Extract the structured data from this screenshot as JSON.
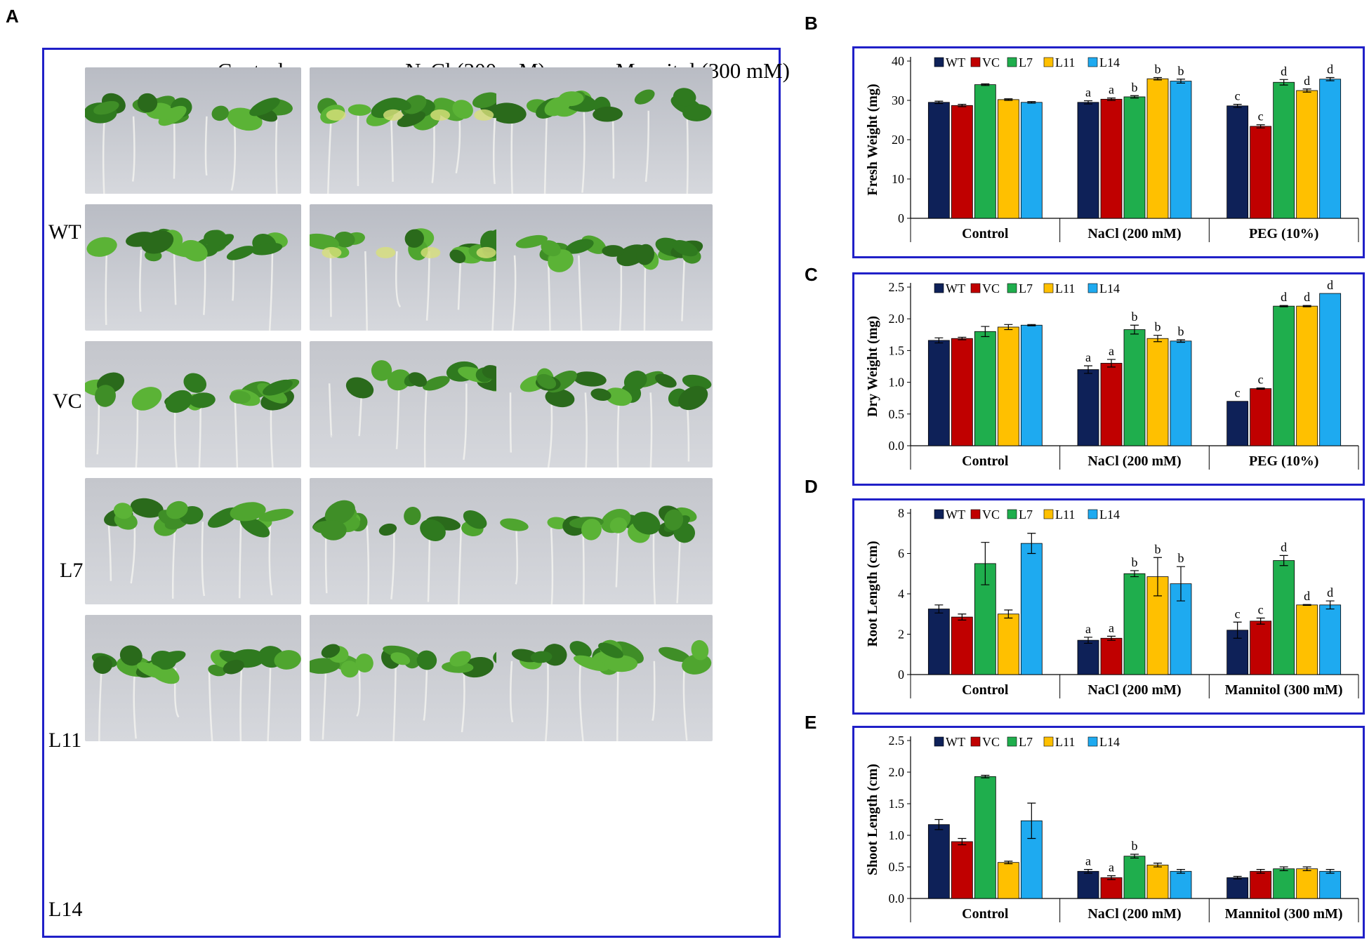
{
  "panels": {
    "A": "A",
    "B": "B",
    "C": "C",
    "D": "D",
    "E": "E"
  },
  "photo_panel": {
    "columns": [
      "Control",
      "NaCl (200 mM)",
      "Mannitol (300 mM)"
    ],
    "rows": [
      "WT",
      "VC",
      "L7",
      "L11",
      "L14"
    ]
  },
  "colors": {
    "WT": "#0e2158",
    "VC": "#c00000",
    "L7": "#1fae4d",
    "L11": "#ffc000",
    "L14": "#1eaaf0",
    "frame": "#2020c8"
  },
  "chart_data": [
    {
      "type": "bar",
      "panel": "B",
      "ylabel": "Fresh Weight (mg)",
      "ylim": [
        0,
        40
      ],
      "yticks": [
        0,
        10,
        20,
        30,
        40
      ],
      "ytick_labels": [
        "0",
        "10",
        "20",
        "30",
        "40"
      ],
      "categories": [
        "Control",
        "NaCl (200 mM)",
        "PEG (10%)"
      ],
      "legend": "top-left",
      "series": [
        {
          "name": "WT",
          "values": [
            29.5,
            29.5,
            28.6
          ],
          "errors": [
            0.3,
            0.4,
            0.4
          ],
          "labels": [
            "",
            "a",
            "c"
          ]
        },
        {
          "name": "VC",
          "values": [
            28.7,
            30.3,
            23.4
          ],
          "errors": [
            0.3,
            0.3,
            0.4
          ],
          "labels": [
            "",
            "a",
            "c"
          ]
        },
        {
          "name": "L7",
          "values": [
            34.0,
            30.9,
            34.6
          ],
          "errors": [
            0.2,
            0.3,
            0.7
          ],
          "labels": [
            "",
            "b",
            "d"
          ]
        },
        {
          "name": "L11",
          "values": [
            30.2,
            35.5,
            32.5
          ],
          "errors": [
            0.2,
            0.3,
            0.4
          ],
          "labels": [
            "",
            "b",
            "d"
          ]
        },
        {
          "name": "L14",
          "values": [
            29.5,
            34.9,
            35.4
          ],
          "errors": [
            0.2,
            0.5,
            0.4
          ],
          "labels": [
            "",
            "b",
            "d"
          ]
        }
      ]
    },
    {
      "type": "bar",
      "panel": "C",
      "ylabel": "Dry Weight (mg)",
      "ylim": [
        0,
        2.5
      ],
      "yticks": [
        0,
        0.5,
        1.0,
        1.5,
        2.0,
        2.5
      ],
      "ytick_labels": [
        "0.0",
        "0.5",
        "1.0",
        "1.5",
        "2.0",
        "2.5"
      ],
      "categories": [
        "Control",
        "NaCl (200 mM)",
        "PEG (10%)"
      ],
      "legend": "top-left",
      "series": [
        {
          "name": "WT",
          "values": [
            1.66,
            1.2,
            0.7
          ],
          "errors": [
            0.04,
            0.06,
            0.0
          ],
          "labels": [
            "",
            "a",
            "c"
          ]
        },
        {
          "name": "VC",
          "values": [
            1.69,
            1.3,
            0.9
          ],
          "errors": [
            0.02,
            0.06,
            0.01
          ],
          "labels": [
            "",
            "a",
            "c"
          ]
        },
        {
          "name": "L7",
          "values": [
            1.8,
            1.83,
            2.2
          ],
          "errors": [
            0.08,
            0.07,
            0.01
          ],
          "labels": [
            "",
            "b",
            "d"
          ]
        },
        {
          "name": "L11",
          "values": [
            1.87,
            1.69,
            2.2
          ],
          "errors": [
            0.04,
            0.05,
            0.01
          ],
          "labels": [
            "",
            "b",
            "d"
          ]
        },
        {
          "name": "L14",
          "values": [
            1.9,
            1.65,
            2.4
          ],
          "errors": [
            0.01,
            0.02,
            0.0
          ],
          "labels": [
            "",
            "b",
            "d"
          ]
        }
      ]
    },
    {
      "type": "bar",
      "panel": "D",
      "ylabel": "Root Length (cm)",
      "ylim": [
        0,
        8
      ],
      "yticks": [
        0,
        2,
        4,
        6,
        8
      ],
      "ytick_labels": [
        "0",
        "2",
        "4",
        "6",
        "8"
      ],
      "categories": [
        "Control",
        "NaCl (200 mM)",
        "Mannitol (300 mM)"
      ],
      "legend": "top-left",
      "series": [
        {
          "name": "WT",
          "values": [
            3.25,
            1.7,
            2.2
          ],
          "errors": [
            0.2,
            0.15,
            0.4
          ],
          "labels": [
            "",
            "a",
            "c"
          ]
        },
        {
          "name": "VC",
          "values": [
            2.85,
            1.8,
            2.65
          ],
          "errors": [
            0.15,
            0.1,
            0.15
          ],
          "labels": [
            "",
            "a",
            "c"
          ]
        },
        {
          "name": "L7",
          "values": [
            5.5,
            5.0,
            5.65
          ],
          "errors": [
            1.05,
            0.15,
            0.25
          ],
          "labels": [
            "",
            "b",
            "d"
          ]
        },
        {
          "name": "L11",
          "values": [
            3.0,
            4.85,
            3.45
          ],
          "errors": [
            0.2,
            0.95,
            0.02
          ],
          "labels": [
            "",
            "b",
            "d"
          ]
        },
        {
          "name": "L14",
          "values": [
            6.5,
            4.5,
            3.45
          ],
          "errors": [
            0.5,
            0.85,
            0.2
          ],
          "labels": [
            "",
            "b",
            "d"
          ]
        }
      ]
    },
    {
      "type": "bar",
      "panel": "E",
      "ylabel": "Shoot Length (cm)",
      "ylim": [
        0,
        2.5
      ],
      "yticks": [
        0,
        0.5,
        1.0,
        1.5,
        2.0,
        2.5
      ],
      "ytick_labels": [
        "0.0",
        "0.5",
        "1.0",
        "1.5",
        "2.0",
        "2.5"
      ],
      "categories": [
        "Control",
        "NaCl (200 mM)",
        "Mannitol (300 mM)"
      ],
      "legend": "top-left",
      "series": [
        {
          "name": "WT",
          "values": [
            1.17,
            0.43,
            0.33
          ],
          "errors": [
            0.08,
            0.03,
            0.02
          ],
          "labels": [
            "",
            "a",
            ""
          ]
        },
        {
          "name": "VC",
          "values": [
            0.9,
            0.33,
            0.43
          ],
          "errors": [
            0.05,
            0.03,
            0.03
          ],
          "labels": [
            "",
            "a",
            ""
          ]
        },
        {
          "name": "L7",
          "values": [
            1.93,
            0.67,
            0.47
          ],
          "errors": [
            0.02,
            0.03,
            0.03
          ],
          "labels": [
            "",
            "b",
            ""
          ]
        },
        {
          "name": "L11",
          "values": [
            0.57,
            0.53,
            0.47
          ],
          "errors": [
            0.02,
            0.03,
            0.03
          ],
          "labels": [
            "",
            "",
            ""
          ]
        },
        {
          "name": "L14",
          "values": [
            1.23,
            0.43,
            0.43
          ],
          "errors": [
            0.28,
            0.03,
            0.03
          ],
          "labels": [
            "",
            "",
            ""
          ]
        }
      ]
    }
  ]
}
